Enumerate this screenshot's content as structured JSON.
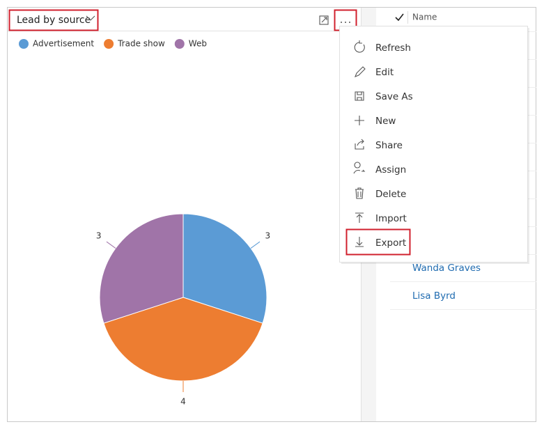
{
  "chart_data": {
    "type": "pie",
    "title": "Lead by source",
    "categories": [
      "Advertisement",
      "Trade show",
      "Web"
    ],
    "values": [
      3,
      4,
      3
    ],
    "colors": [
      "#5b9bd5",
      "#ed7d31",
      "#a074a8"
    ]
  },
  "menu": {
    "items": [
      "Refresh",
      "Edit",
      "Save As",
      "New",
      "Share",
      "Assign",
      "Delete",
      "Import",
      "Export"
    ]
  },
  "list": {
    "column": "Name",
    "rows": [
      "Wanda Graves",
      "Lisa Byrd"
    ]
  }
}
